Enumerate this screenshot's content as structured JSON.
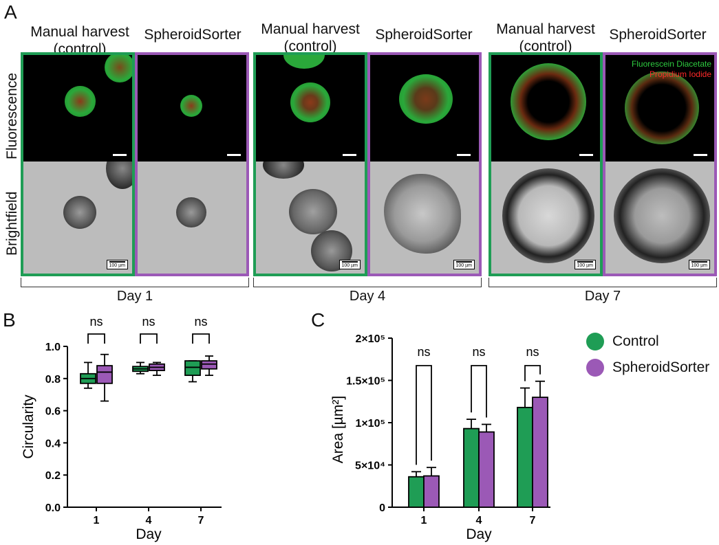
{
  "panel_a": {
    "letter": "A",
    "column_titles": {
      "manual_line1": "Manual harvest",
      "manual_line2": "(control)",
      "sorter": "SpheroidSorter"
    },
    "row_labels": {
      "fluorescence": "Fluorescence",
      "brightfield": "Brightfield"
    },
    "days": [
      "Day 1",
      "Day 4",
      "Day 7"
    ],
    "scale_bar_label": "100 µm",
    "dye_labels": {
      "fda": "Fluorescein Diacetate",
      "pi": "Propidium Iodide"
    },
    "colors": {
      "control": "#1f9d55",
      "sorter": "#9b59b6",
      "fda": "#2ecc40",
      "pi": "#ff2a2a"
    }
  },
  "panel_b": {
    "letter": "B"
  },
  "panel_c": {
    "letter": "C"
  },
  "chart_data": [
    {
      "type": "box",
      "ylabel": "Circularity",
      "xlabel": "Day",
      "categories": [
        "1",
        "4",
        "7"
      ],
      "ylim": [
        0.0,
        1.0
      ],
      "yticks": [
        "0.0",
        "0.2",
        "0.4",
        "0.6",
        "0.8",
        "1.0"
      ],
      "significance": [
        "ns",
        "ns",
        "ns"
      ],
      "series": [
        {
          "name": "Control",
          "color": "#1f9d55",
          "boxes": [
            {
              "min": 0.74,
              "q1": 0.77,
              "median": 0.8,
              "q3": 0.83,
              "max": 0.9
            },
            {
              "min": 0.83,
              "q1": 0.845,
              "median": 0.86,
              "q3": 0.875,
              "max": 0.9
            },
            {
              "min": 0.78,
              "q1": 0.82,
              "median": 0.87,
              "q3": 0.91,
              "max": 0.91
            }
          ]
        },
        {
          "name": "SpheroidSorter",
          "color": "#9b59b6",
          "boxes": [
            {
              "min": 0.66,
              "q1": 0.77,
              "median": 0.84,
              "q3": 0.88,
              "max": 0.95
            },
            {
              "min": 0.82,
              "q1": 0.85,
              "median": 0.87,
              "q3": 0.89,
              "max": 0.9
            },
            {
              "min": 0.82,
              "q1": 0.86,
              "median": 0.89,
              "q3": 0.91,
              "max": 0.94
            }
          ]
        }
      ]
    },
    {
      "type": "bar",
      "ylabel": "Area [µm²]",
      "xlabel": "Day",
      "categories": [
        "1",
        "4",
        "7"
      ],
      "ylim": [
        0,
        200000
      ],
      "yticks": [
        "0",
        "5×10⁴",
        "1×10⁵",
        "1.5×10⁵",
        "2×10⁵"
      ],
      "significance": [
        "ns",
        "ns",
        "ns"
      ],
      "series": [
        {
          "name": "Control",
          "color": "#1f9d55",
          "values": [
            36000,
            93000,
            118000
          ],
          "errors": [
            6000,
            11000,
            23000
          ]
        },
        {
          "name": "SpheroidSorter",
          "color": "#9b59b6",
          "values": [
            37000,
            89000,
            130000
          ],
          "errors": [
            10000,
            9000,
            19000
          ]
        }
      ]
    }
  ],
  "legend": {
    "items": [
      {
        "label": "Control",
        "color": "#1f9d55"
      },
      {
        "label": "SpheroidSorter",
        "color": "#9b59b6"
      }
    ]
  }
}
